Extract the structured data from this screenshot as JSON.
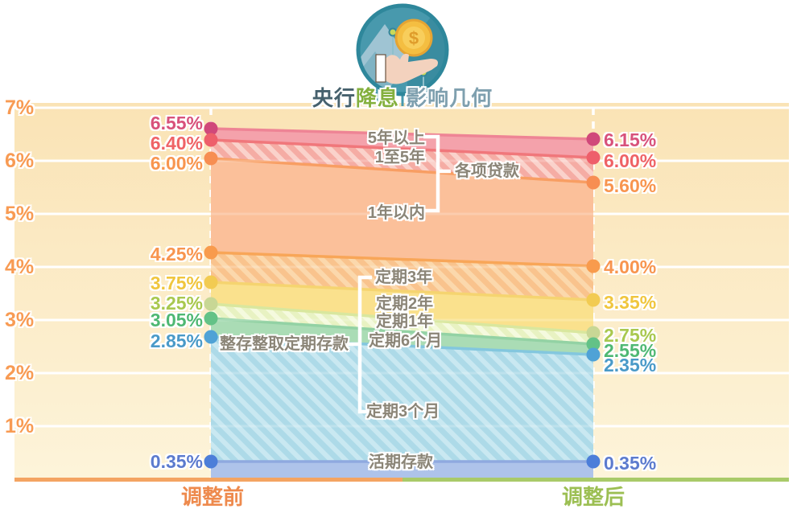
{
  "title": {
    "text_parts": [
      {
        "text": "央行",
        "color": "#46616D"
      },
      {
        "text": "降息",
        "color": "#84B03E"
      },
      {
        "text": " 影响几何",
        "color": "#7FA0AF"
      }
    ]
  },
  "icon": {
    "label": "hand-coin"
  },
  "axis": {
    "y_ticks": [
      "7%",
      "6%",
      "5%",
      "4%",
      "3%",
      "2%",
      "1%"
    ],
    "tick_color": "#F89B53",
    "bottom_left": {
      "label": "调整前",
      "color": "#EE8A4D",
      "line_color": "#F4A462"
    },
    "bottom_right": {
      "label": "调整后",
      "color": "#9CBF53",
      "line_color": "#A9CA69"
    }
  },
  "chart_data": {
    "type": "area",
    "subtype": "slope-band-comparison",
    "columns": [
      "调整前",
      "调整后"
    ],
    "ylim": [
      0,
      7
    ],
    "unit": "%",
    "title": "央行降息 影响几何",
    "series": [
      {
        "name": "5年以上",
        "group": "各项贷款",
        "before": 6.55,
        "after": 6.15,
        "before_label": "6.55%",
        "after_label": "6.15%",
        "label_color": "#D8527B",
        "dot_color": "#D0487A"
      },
      {
        "name": "1至5年",
        "group": "各项贷款",
        "before": 6.4,
        "after": 6.0,
        "before_label": "6.40%",
        "after_label": "6.00%",
        "label_color": "#EF6366",
        "dot_color": "#EE5F6B"
      },
      {
        "name": "1年以内",
        "group": "各项贷款",
        "before": 6.0,
        "after": 5.6,
        "before_label": "6.00%",
        "after_label": "5.60%",
        "label_color": "#F8954F",
        "dot_color": "#F78E52"
      },
      {
        "name": "定期3年",
        "group": "整存整取定期存款",
        "before": 4.25,
        "after": 4.0,
        "before_label": "4.25%",
        "after_label": "4.00%",
        "label_color": "#F8954F",
        "dot_color": "#F89B4D"
      },
      {
        "name": "定期2年",
        "group": "整存整取定期存款",
        "before": 3.75,
        "after": 3.35,
        "before_label": "3.75%",
        "after_label": "3.35%",
        "label_color": "#F0C63E",
        "dot_color": "#F2CB52"
      },
      {
        "name": "定期1年",
        "group": "整存整取定期存款",
        "before": 3.25,
        "after": 2.75,
        "before_label": "3.25%",
        "after_label": "2.75%",
        "label_color": "#A9C84F",
        "dot_color": "#C8D795"
      },
      {
        "name": "定期6个月",
        "group": "整存整取定期存款",
        "before": 3.05,
        "after": 2.55,
        "before_label": "3.05%",
        "after_label": "2.55%",
        "label_color": "#4FB873",
        "dot_color": "#63C287"
      },
      {
        "name": "定期3个月",
        "group": "整存整取定期存款",
        "before": 2.85,
        "after": 2.35,
        "before_label": "2.85%",
        "after_label": "2.35%",
        "label_color": "#4A9AC8",
        "dot_color": "#4FA2D6"
      },
      {
        "name": "活期存款",
        "group": "",
        "before": 0.35,
        "after": 0.35,
        "before_label": "0.35%",
        "after_label": "0.35%",
        "label_color": "#5C7BCE",
        "dot_color": "#4C7ED9"
      }
    ],
    "groups": [
      {
        "label": "各项贷款",
        "members": [
          "5年以上",
          "1至5年",
          "1年以内"
        ]
      },
      {
        "label": "整存整取定期存款",
        "members": [
          "定期3年",
          "定期2年",
          "定期1年",
          "定期6个月",
          "定期3个月"
        ]
      }
    ],
    "bands": [
      {
        "from": "5年以上",
        "to": "1至5年",
        "fill": "#F4A2AB",
        "hatch": false,
        "edge": "#EE8495"
      },
      {
        "from": "1至5年",
        "to": "1年以内",
        "fill": "#F5ACA4",
        "hatch": true,
        "stripe": "#FAD2CB",
        "edge": "#F0777B"
      },
      {
        "from": "1年以内",
        "to": "定期3年",
        "fill": "#FBC09A",
        "hatch": false,
        "edge": "#F89E63"
      },
      {
        "from": "定期3年",
        "to": "定期2年",
        "fill": "#F9C38D",
        "hatch": true,
        "stripe": "#FBD8AC",
        "edge": "#F8A658"
      },
      {
        "from": "定期2年",
        "to": "定期1年",
        "fill": "#FAE18D",
        "hatch": false,
        "edge": "#F5D470"
      },
      {
        "from": "定期1年",
        "to": "定期6个月",
        "fill": "#E8F2C2",
        "hatch": true,
        "stripe": "#F5FADE",
        "edge": "#D9E79E"
      },
      {
        "from": "定期6个月",
        "to": "定期3个月",
        "fill": "#AADCB5",
        "hatch": false,
        "edge": "#93D2A4"
      },
      {
        "from": "定期3个月",
        "to": "活期存款",
        "fill": "#ADDAE8",
        "hatch": true,
        "stripe": "#C9E8F1",
        "edge": "#83C7DE"
      },
      {
        "from": "活期存款",
        "to": "0%",
        "fill": "#AEC3EA",
        "hatch": false,
        "edge": "#8FA9DF"
      }
    ],
    "plot_background": {
      "top_color": "#FAE3B5",
      "bottom_color": "#FDF4DA",
      "gridline_color": "#FFFFFF"
    }
  }
}
